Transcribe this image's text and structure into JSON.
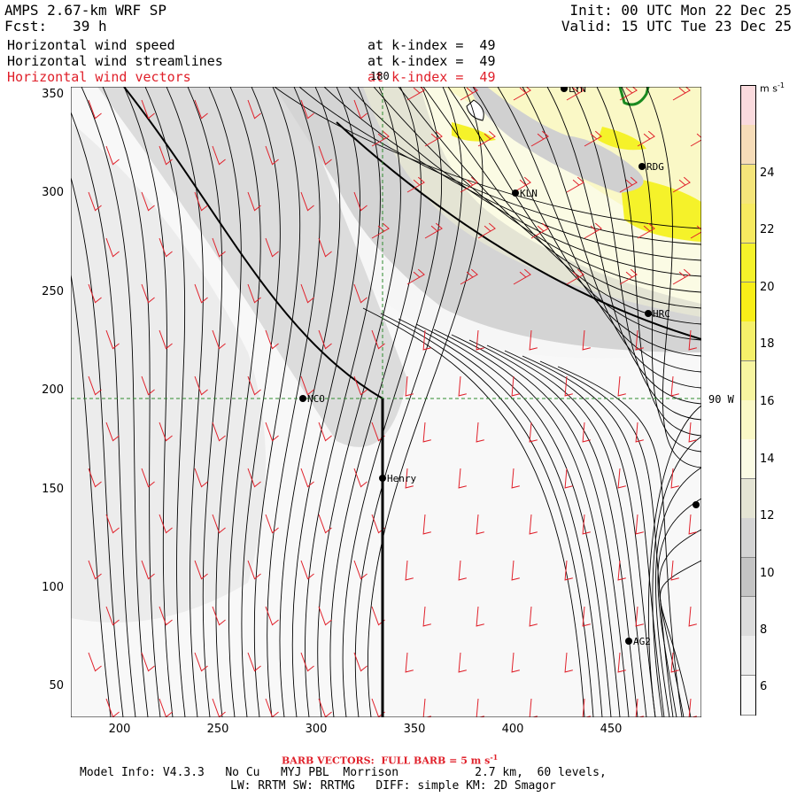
{
  "header": {
    "model": "AMPS 2.67-km WRF SP",
    "forecast": "Fcst:   39 h",
    "init": "Init: 00 UTC Mon 22 Dec 25",
    "valid": "Valid: 15 UTC Tue 23 Dec 25",
    "fields": [
      {
        "name": "Horizontal wind speed",
        "level": "at k-index =  49",
        "color": "#000000"
      },
      {
        "name": "Horizontal wind streamlines",
        "level": "at k-index =  49",
        "color": "#000000"
      },
      {
        "name": "Horizontal wind vectors",
        "level": "at k-index =  49",
        "color": "#e0202a"
      }
    ]
  },
  "map": {
    "x_ticks": [
      "200",
      "250",
      "300",
      "350",
      "400",
      "450"
    ],
    "y_ticks": [
      "350",
      "300",
      "250",
      "200",
      "150",
      "100",
      "50"
    ],
    "meridian_label": "180",
    "parallel_label": "90 W",
    "stations": [
      {
        "name": "LYN"
      },
      {
        "name": "RDG"
      },
      {
        "name": "KLN"
      },
      {
        "name": "HRC"
      },
      {
        "name": "NCO"
      },
      {
        "name": "Henry"
      },
      {
        "name": "AG2"
      },
      {
        "name": ""
      }
    ]
  },
  "colorbar": {
    "units": "m s",
    "units_sup": "-1",
    "labels": [
      "24",
      "22",
      "20",
      "18",
      "16",
      "14",
      "12",
      "10",
      "8",
      "6"
    ],
    "colors": [
      "#fadadd",
      "#f6dcb8",
      "#f5e57a",
      "#f7ea60",
      "#f5f22a",
      "#f8ee18",
      "#f5f06a",
      "#f7f5a0",
      "#faf8c6",
      "#fbfbe4",
      "#e4e4d4",
      "#d4d4d4",
      "#c4c4c4",
      "#dcdcdc",
      "#ececec",
      "#f8f8f8"
    ]
  },
  "footer": {
    "barb_note": "BARB VECTORS:  FULL BARB = 5 m s",
    "barb_sup": "-1",
    "line1": "Model Info: V4.3.3   No Cu   MYJ PBL  Morrison           2.7 km,  60 levels,",
    "line2": "LW: RRTM SW: RRTMG   DIFF: simple KM: 2D Smagor"
  }
}
